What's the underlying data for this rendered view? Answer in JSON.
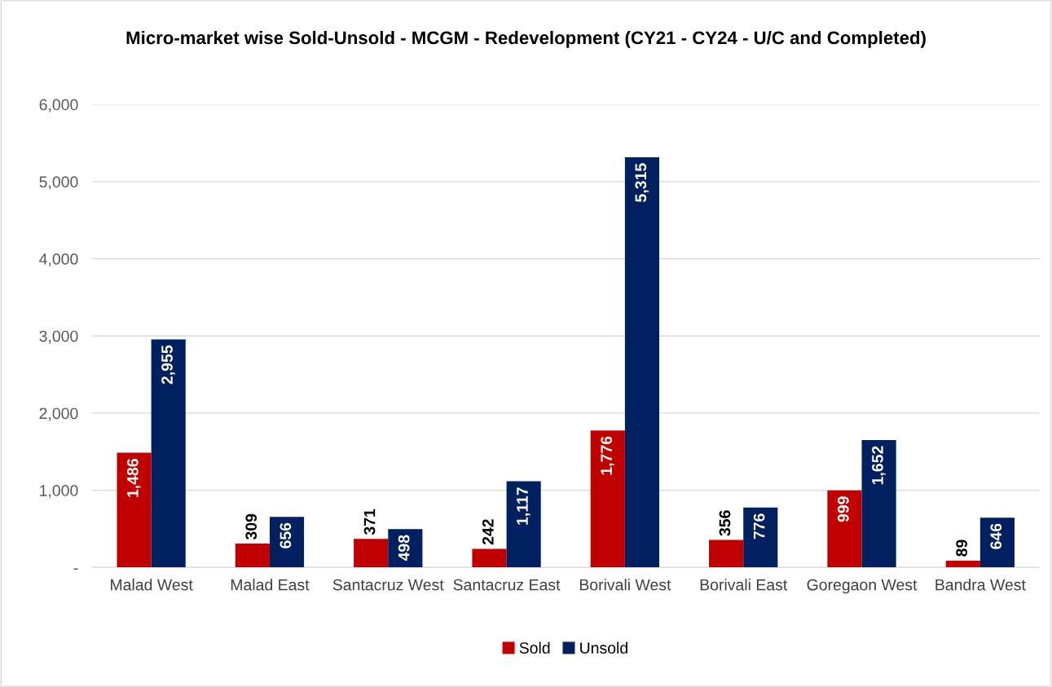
{
  "chart_data": {
    "type": "bar",
    "title": "Micro-market wise Sold-Unsold - MCGM - Redevelopment (CY21 - CY24 - U/C and Completed)",
    "categories": [
      "Malad West",
      "Malad East",
      "Santacruz West",
      "Santacruz East",
      "Borivali West",
      "Borivali East",
      "Goregaon West",
      "Bandra West"
    ],
    "series": [
      {
        "name": "Sold",
        "color": "#c00000",
        "values": [
          1486,
          309,
          371,
          242,
          1776,
          356,
          999,
          89
        ],
        "value_labels": [
          "1,486",
          "309",
          "371",
          "242",
          "1,776",
          "356",
          "999",
          "89"
        ]
      },
      {
        "name": "Unsold",
        "color": "#002060",
        "values": [
          2955,
          656,
          498,
          1117,
          5315,
          776,
          1652,
          646
        ],
        "value_labels": [
          "2,955",
          "656",
          "498",
          "1,117",
          "5,315",
          "776",
          "1,652",
          "646"
        ]
      }
    ],
    "ylim": [
      0,
      6000
    ],
    "yticks": [
      {
        "value": 0,
        "label": "-"
      },
      {
        "value": 1000,
        "label": "1,000"
      },
      {
        "value": 2000,
        "label": "2,000"
      },
      {
        "value": 3000,
        "label": "3,000"
      },
      {
        "value": 4000,
        "label": "4,000"
      },
      {
        "value": 5000,
        "label": "5,000"
      },
      {
        "value": 6000,
        "label": "6,000"
      }
    ],
    "grid": "y",
    "legend": "bottom"
  }
}
